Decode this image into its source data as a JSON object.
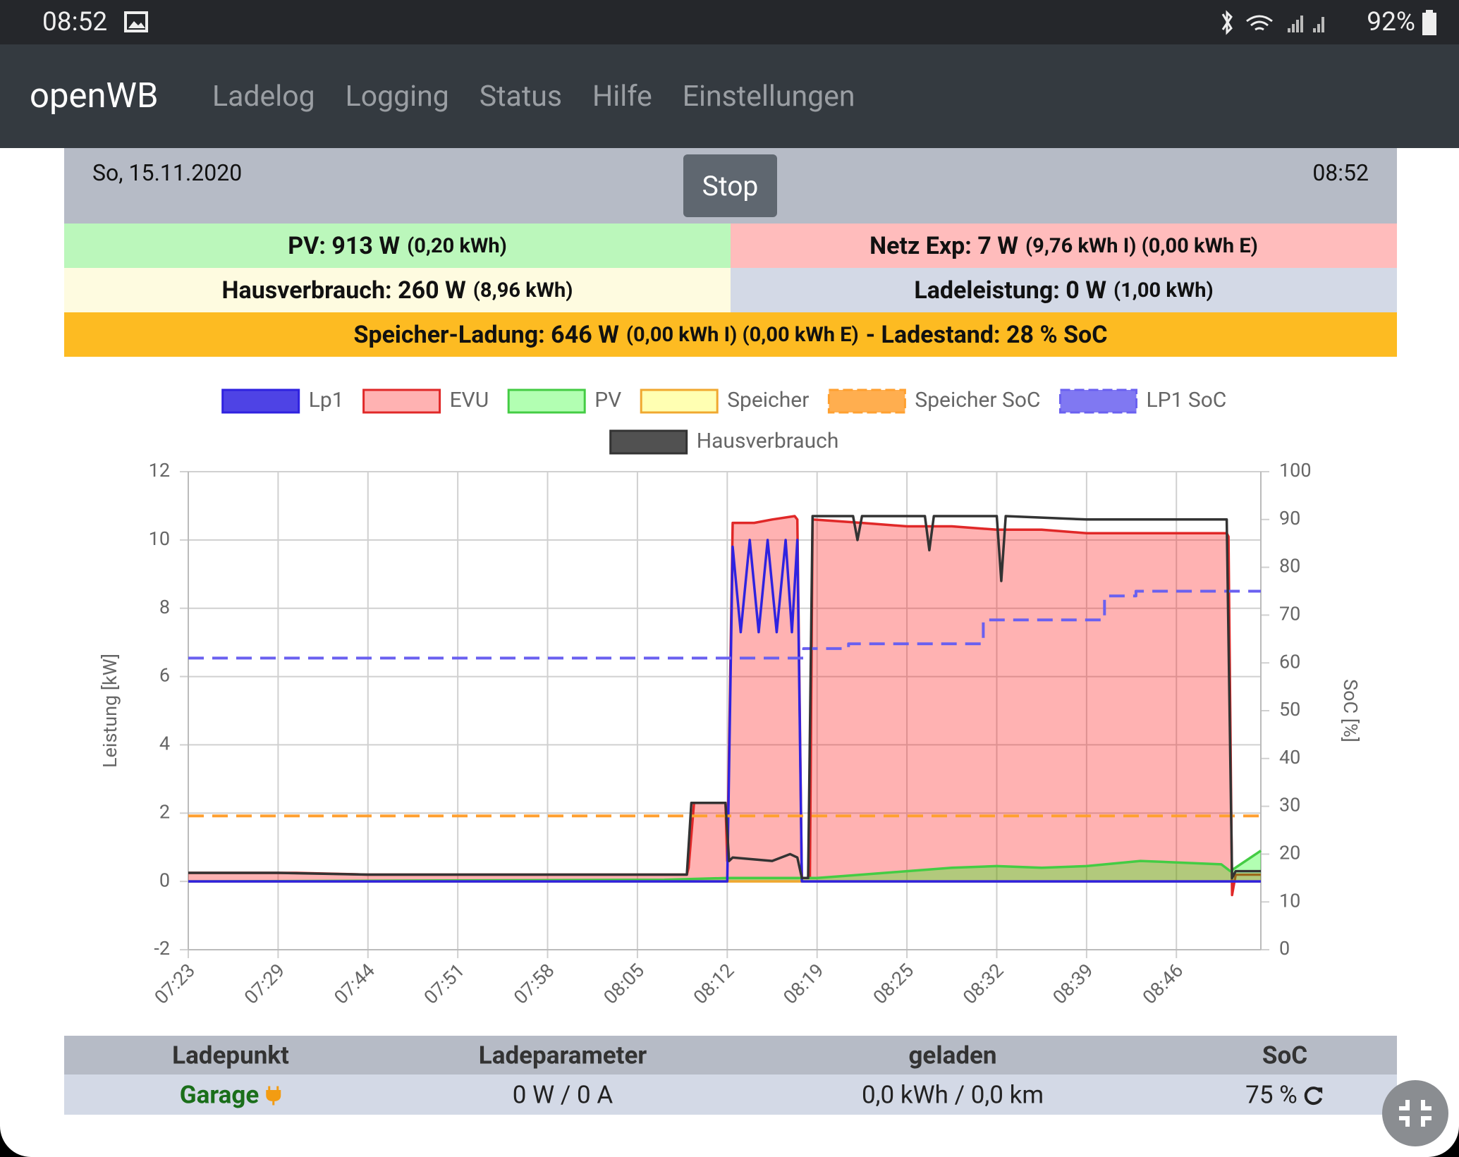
{
  "status_bar": {
    "time": "08:52",
    "battery": "92%"
  },
  "nav": {
    "brand": "openWB",
    "links": [
      "Ladelog",
      "Logging",
      "Status",
      "Hilfe",
      "Einstellungen"
    ]
  },
  "header": {
    "date": "So, 15.11.2020",
    "button": "Stop",
    "time": "08:52"
  },
  "summary": {
    "pv": {
      "main": "PV: 913 W",
      "detail": "(0,20 kWh)"
    },
    "netz": {
      "main": "Netz Exp: 7 W",
      "detail": "(9,76 kWh I) (0,00 kWh E)"
    },
    "haus": {
      "main": "Hausverbrauch: 260 W",
      "detail": "(8,96 kWh)"
    },
    "ladeleistung": {
      "main": "Ladeleistung: 0 W",
      "detail": "(1,00 kWh)"
    },
    "speicher": {
      "main": "Speicher-Ladung: 646 W",
      "detail": "(0,00 kWh I) (0,00 kWh E)",
      "soc": "- Ladestand: 28 % SoC"
    }
  },
  "chart_data": {
    "type": "line",
    "ylabel": "Leistung [kW]",
    "y2label": "SoC [%]",
    "xlim": [
      0,
      11.94
    ],
    "xticks": [
      {
        "value": 0,
        "label": "07:23"
      },
      {
        "value": 1,
        "label": "07:29"
      },
      {
        "value": 2,
        "label": "07:44"
      },
      {
        "value": 3,
        "label": "07:51"
      },
      {
        "value": 4,
        "label": "07:58"
      },
      {
        "value": 5,
        "label": "08:05"
      },
      {
        "value": 6,
        "label": "08:12"
      },
      {
        "value": 7,
        "label": "08:19"
      },
      {
        "value": 8,
        "label": "08:25"
      },
      {
        "value": 9,
        "label": "08:32"
      },
      {
        "value": 10,
        "label": "08:39"
      },
      {
        "value": 11,
        "label": "08:46"
      }
    ],
    "ylim": [
      -2,
      12
    ],
    "yticks": [
      -2,
      0,
      2,
      4,
      6,
      8,
      10,
      12
    ],
    "y2lim": [
      0,
      100
    ],
    "y2ticks": [
      0,
      10,
      20,
      30,
      40,
      50,
      60,
      70,
      80,
      90,
      100
    ],
    "grid": true,
    "legend": "top",
    "series": [
      {
        "name": "Lp1",
        "color": "#2f22e0",
        "area": false,
        "dashed": false,
        "x": [
          0,
          6.0,
          6.06,
          6.15,
          6.25,
          6.35,
          6.45,
          6.55,
          6.65,
          6.72,
          6.78,
          6.83,
          11.94
        ],
        "values": [
          0,
          0,
          9.8,
          7.3,
          10,
          7.3,
          10,
          7.3,
          10,
          7.3,
          10,
          0,
          0
        ]
      },
      {
        "name": "EVU",
        "color": "#e02828",
        "fill": "#ff0000",
        "area": true,
        "dashed": false,
        "x": [
          0,
          1.2,
          2,
          3,
          4,
          5,
          5.55,
          5.57,
          5.63,
          5.98,
          6.0,
          6.06,
          6.3,
          6.5,
          6.75,
          6.78,
          6.83,
          6.92,
          6.95,
          7.5,
          8,
          8.5,
          9,
          9.5,
          10,
          10.5,
          11,
          11.56,
          11.58,
          11.62,
          11.66,
          11.94
        ],
        "values": [
          0.25,
          0.25,
          0.2,
          0.2,
          0.2,
          0.2,
          0.2,
          0.4,
          2.3,
          2.3,
          0.6,
          10.5,
          10.5,
          10.6,
          10.7,
          10.6,
          0.1,
          0.1,
          10.6,
          10.5,
          10.4,
          10.4,
          10.3,
          10.3,
          10.2,
          10.2,
          10.2,
          10.2,
          10.1,
          -0.4,
          0.2,
          0.2
        ]
      },
      {
        "name": "PV",
        "color": "#44cc44",
        "fill": "#00ff00",
        "area": true,
        "dashed": false,
        "x": [
          0,
          5.3,
          6,
          7,
          7.5,
          8,
          8.5,
          9,
          9.5,
          10,
          10.6,
          11.5,
          11.6,
          11.94
        ],
        "values": [
          0,
          0.05,
          0.1,
          0.1,
          0.2,
          0.3,
          0.4,
          0.45,
          0.4,
          0.45,
          0.6,
          0.5,
          0.3,
          0.9
        ]
      },
      {
        "name": "Speicher",
        "color": "#f0a830",
        "fill": "#ffff00",
        "area": true,
        "dashed": false,
        "x": [
          0,
          11.94
        ],
        "values": [
          0,
          0
        ]
      },
      {
        "name": "Speicher SoC",
        "color": "#ffa030",
        "area": false,
        "dashed": true,
        "axis": "y2",
        "x": [
          0,
          11.94
        ],
        "values": [
          28,
          28
        ]
      },
      {
        "name": "LP1 SoC",
        "color": "#6a60f0",
        "area": false,
        "dashed": true,
        "axis": "y2",
        "x": [
          0,
          6.85,
          6.85,
          7.35,
          7.35,
          8.85,
          8.85,
          10.2,
          10.2,
          10.55,
          10.55,
          11.94
        ],
        "values": [
          61,
          61,
          63,
          63,
          64,
          64,
          69,
          69,
          74,
          74,
          75,
          75
        ]
      },
      {
        "name": "Hausverbrauch",
        "color": "#333333",
        "area": false,
        "dashed": false,
        "x": [
          0,
          1,
          2,
          3,
          4,
          5,
          5.55,
          5.6,
          5.98,
          6.02,
          6.06,
          6.5,
          6.7,
          6.78,
          6.83,
          6.9,
          6.95,
          7.4,
          7.45,
          7.5,
          8.2,
          8.25,
          8.3,
          9.0,
          9.05,
          9.1,
          10,
          11,
          11.56,
          11.62,
          11.66,
          11.94
        ],
        "values": [
          0.25,
          0.25,
          0.2,
          0.2,
          0.2,
          0.2,
          0.2,
          2.3,
          2.3,
          0.6,
          0.7,
          0.6,
          0.8,
          0.7,
          0.1,
          0.1,
          10.7,
          10.7,
          10.0,
          10.7,
          10.7,
          9.7,
          10.7,
          10.7,
          8.8,
          10.7,
          10.6,
          10.6,
          10.6,
          0.1,
          0.3,
          0.3
        ]
      }
    ]
  },
  "table": {
    "headers": [
      "Ladepunkt",
      "Ladeparameter",
      "geladen",
      "SoC"
    ],
    "rows": [
      [
        "Garage",
        "0 W / 0 A",
        "0,0 kWh / 0,0 km",
        "75 %"
      ]
    ]
  }
}
